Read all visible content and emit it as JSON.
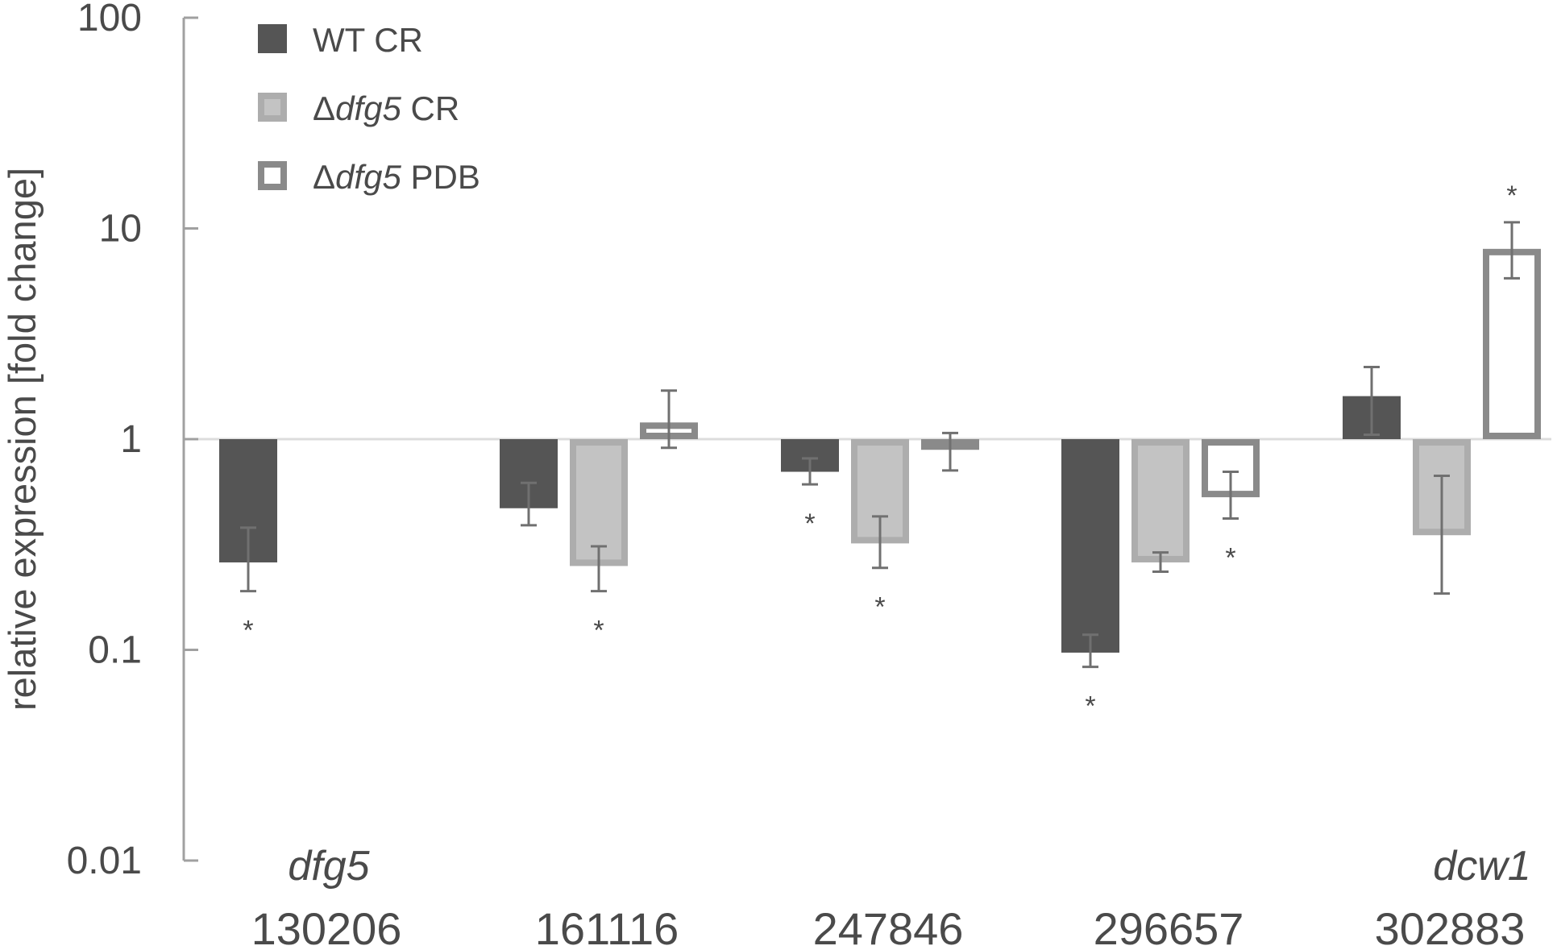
{
  "chart_data": {
    "type": "bar",
    "ylabel": "relative expression [fold change]",
    "yscale": "log",
    "ylim": [
      0.01,
      100
    ],
    "y_ticks": [
      "0.01",
      "0.1",
      "1",
      "10",
      "100"
    ],
    "baseline": 1,
    "categories": [
      "130206",
      "161116",
      "247846",
      "296657",
      "302883"
    ],
    "gene_names": [
      "dfg5",
      "",
      "",
      "",
      "dcw1"
    ],
    "legend": [
      {
        "delta": "",
        "italic": "",
        "rest": "WT CR"
      },
      {
        "delta": "Δ",
        "italic": "dfg5",
        "rest": " CR"
      },
      {
        "delta": "Δ",
        "italic": "dfg5",
        "rest": " PDB"
      }
    ],
    "series": [
      {
        "style": "dark",
        "values": [
          0.26,
          0.47,
          0.7,
          0.097,
          1.6
        ],
        "err_low": [
          0.19,
          0.39,
          0.61,
          0.083,
          1.05
        ],
        "err_high": [
          0.38,
          0.62,
          0.81,
          0.118,
          2.2
        ],
        "significant": [
          true,
          false,
          true,
          true,
          false
        ]
      },
      {
        "style": "light",
        "values": [
          null,
          0.25,
          0.32,
          0.26,
          0.35
        ],
        "err_low": [
          null,
          0.19,
          0.245,
          0.235,
          0.185
        ],
        "err_high": [
          null,
          0.31,
          0.43,
          0.29,
          0.67
        ],
        "significant": [
          false,
          true,
          true,
          false,
          false
        ]
      },
      {
        "style": "outline",
        "values": [
          null,
          1.2,
          0.89,
          0.53,
          8.0
        ],
        "err_low": [
          null,
          0.91,
          0.71,
          0.42,
          5.8
        ],
        "err_high": [
          null,
          1.7,
          1.07,
          0.7,
          10.7
        ],
        "significant": [
          false,
          false,
          false,
          true,
          true
        ]
      }
    ],
    "significance_marker": "*",
    "colors": {
      "dark": "#555555",
      "light_fill": "#c3c3c3",
      "light_stroke": "#adadad",
      "outline_stroke": "#8a8a8a",
      "axis": "#a0a0a0",
      "baseline": "#dcdcdc",
      "error_bar": "#707070",
      "text": "#4a4a4a"
    }
  }
}
